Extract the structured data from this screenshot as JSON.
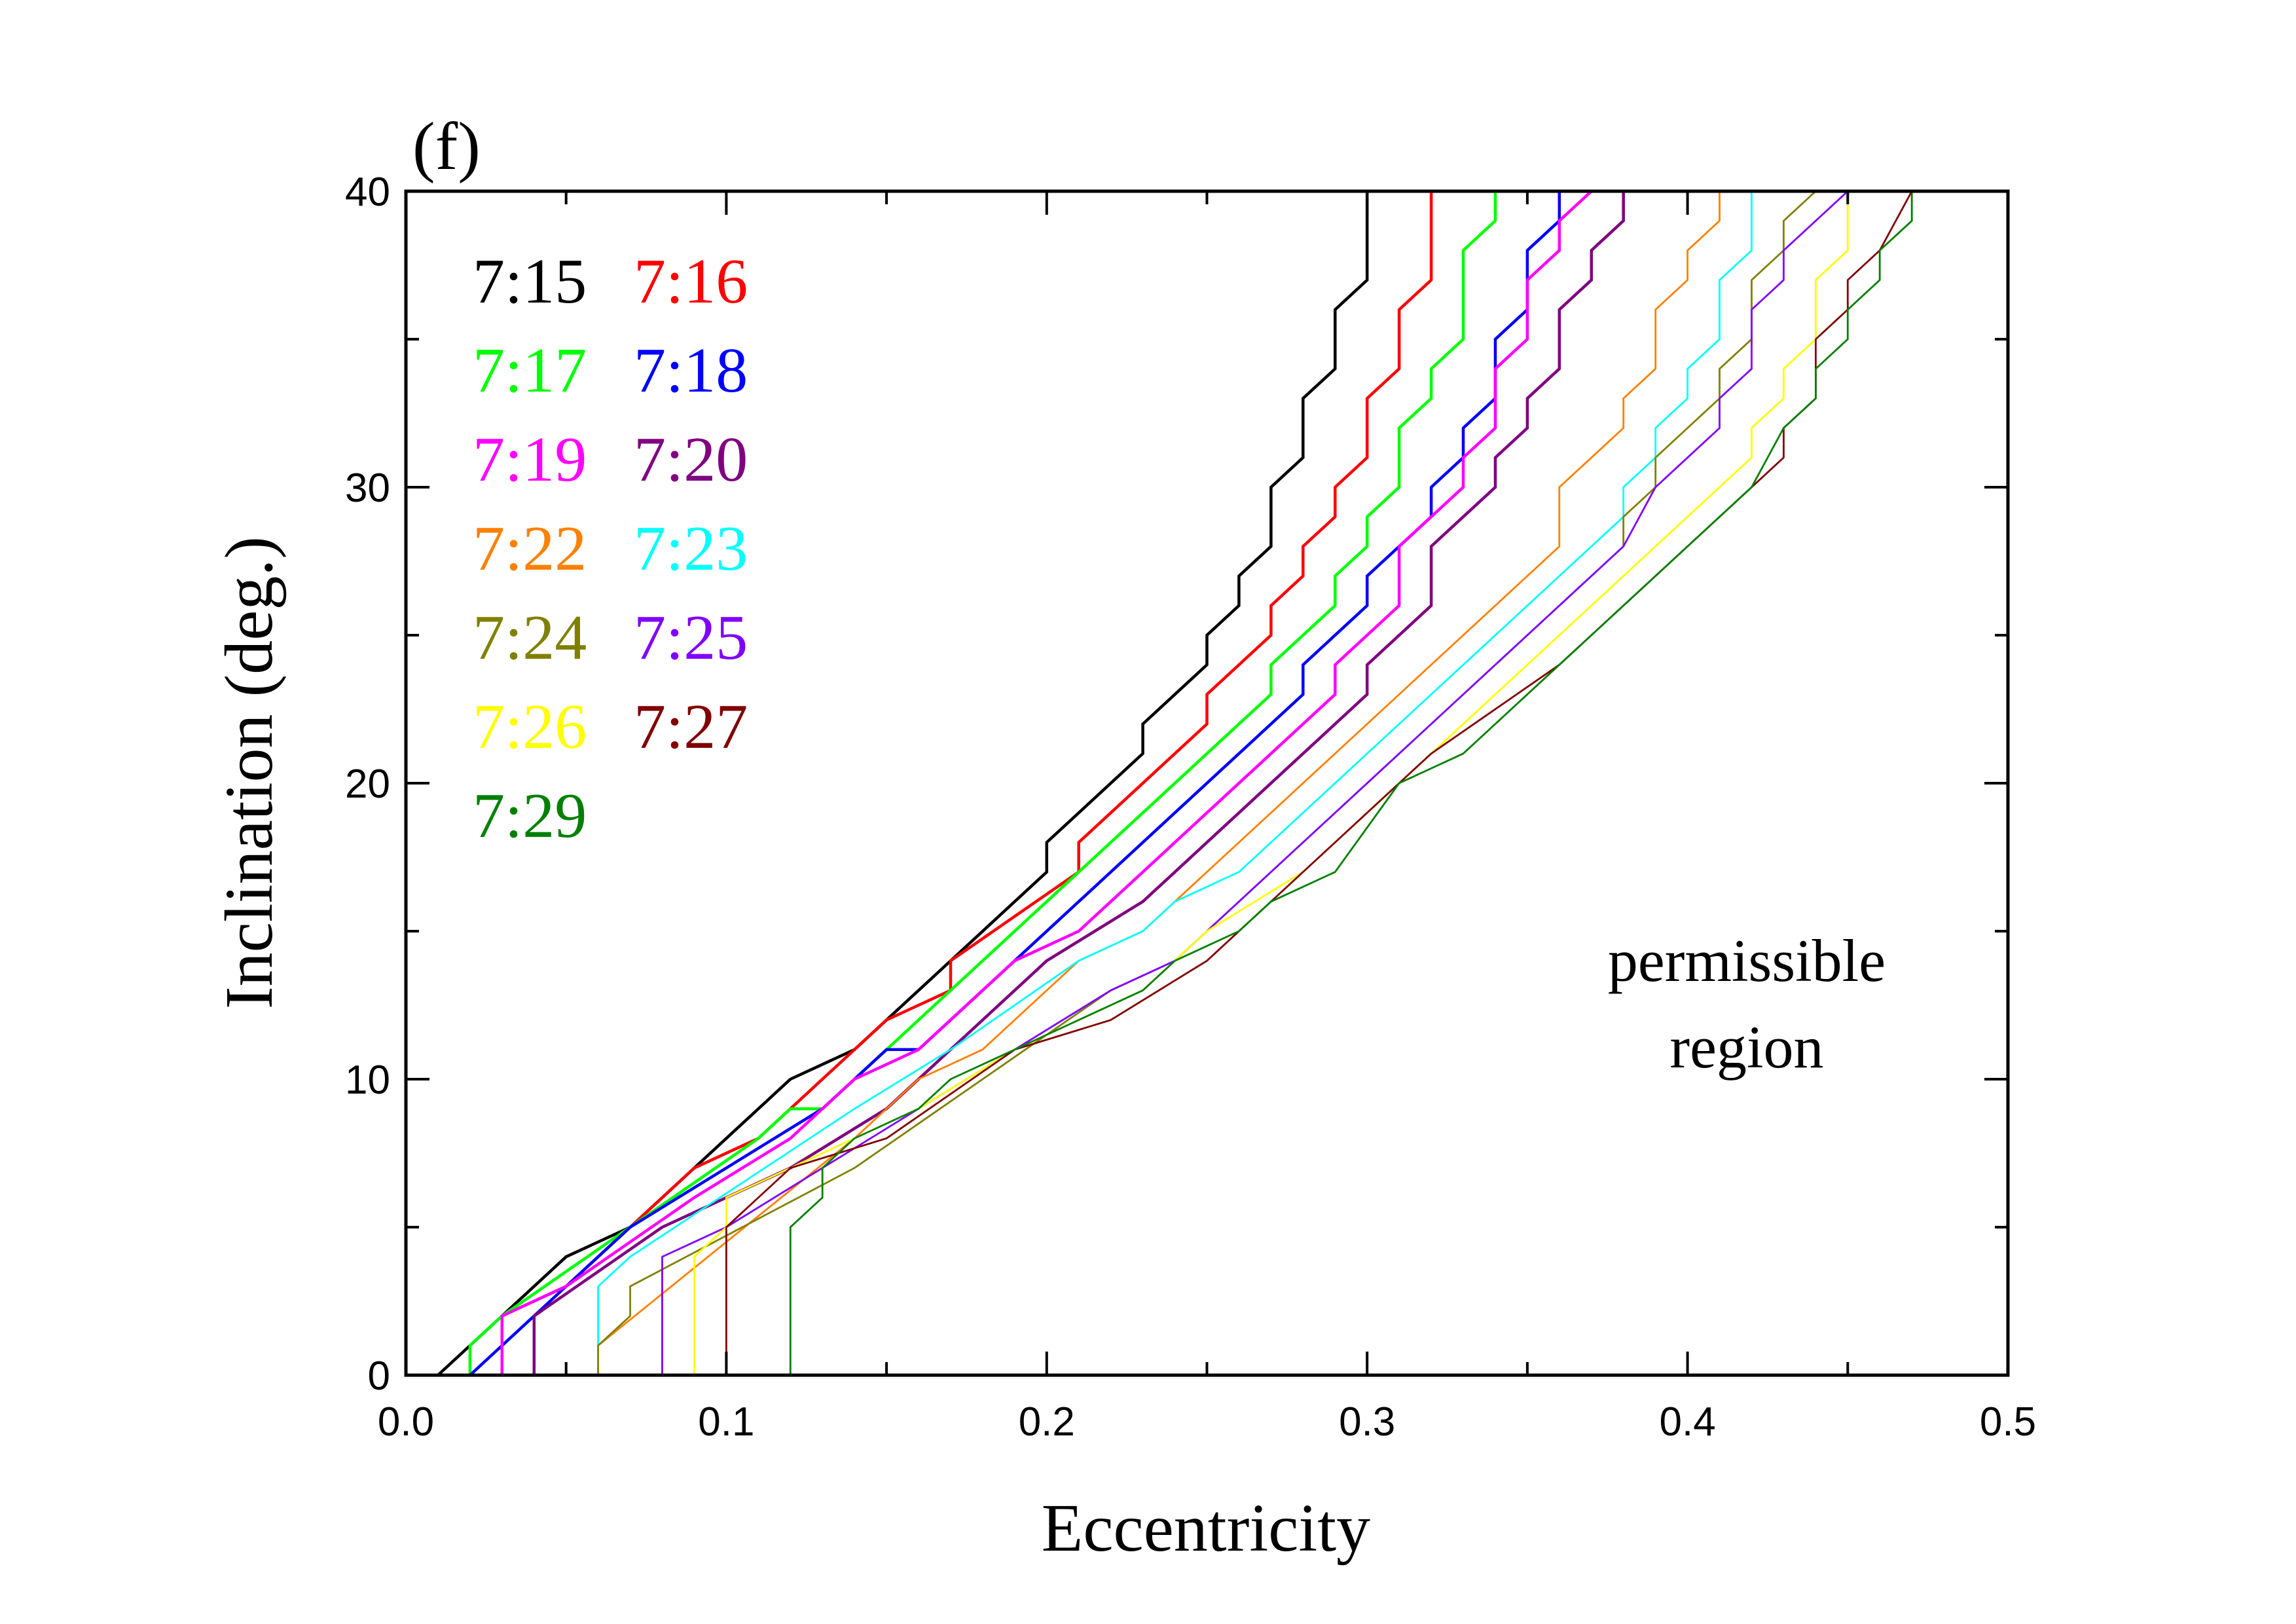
{
  "chart_data": {
    "type": "line",
    "panel_label": "(f)",
    "xlabel": "Eccentricity",
    "ylabel": "Inclination (deg.)",
    "xlim": [
      0.0,
      0.5
    ],
    "ylim": [
      0,
      40
    ],
    "xticks": [
      0.0,
      0.1,
      0.2,
      0.3,
      0.4,
      0.5
    ],
    "xtick_labels": [
      "0.0",
      "0.1",
      "0.2",
      "0.3",
      "0.4",
      "0.5"
    ],
    "yticks": [
      0,
      10,
      20,
      30,
      40
    ],
    "ytick_labels": [
      "0",
      "10",
      "20",
      "30",
      "40"
    ],
    "grid": false,
    "legend_position": "top-left",
    "annotation": [
      "permissible",
      "region"
    ],
    "series": [
      {
        "name": "7:15",
        "color": "#000000",
        "points": [
          [
            0.01,
            0
          ],
          [
            0.05,
            4
          ],
          [
            0.07,
            5
          ],
          [
            0.12,
            10
          ],
          [
            0.14,
            11
          ],
          [
            0.2,
            17
          ],
          [
            0.2,
            18
          ],
          [
            0.23,
            21
          ],
          [
            0.23,
            22
          ],
          [
            0.25,
            24
          ],
          [
            0.25,
            25
          ],
          [
            0.26,
            26
          ],
          [
            0.26,
            27
          ],
          [
            0.27,
            28
          ],
          [
            0.27,
            30
          ],
          [
            0.28,
            31
          ],
          [
            0.28,
            33
          ],
          [
            0.29,
            34
          ],
          [
            0.29,
            36
          ],
          [
            0.3,
            37
          ],
          [
            0.3,
            40
          ]
        ]
      },
      {
        "name": "7:16",
        "color": "#ff0000",
        "points": [
          [
            0.03,
            2
          ],
          [
            0.05,
            3
          ],
          [
            0.09,
            7
          ],
          [
            0.11,
            8
          ],
          [
            0.15,
            12
          ],
          [
            0.17,
            13
          ],
          [
            0.17,
            14
          ],
          [
            0.21,
            17
          ],
          [
            0.21,
            18
          ],
          [
            0.25,
            22
          ],
          [
            0.25,
            23
          ],
          [
            0.27,
            25
          ],
          [
            0.27,
            26
          ],
          [
            0.28,
            27
          ],
          [
            0.28,
            28
          ],
          [
            0.29,
            29
          ],
          [
            0.29,
            30
          ],
          [
            0.3,
            31
          ],
          [
            0.3,
            33
          ],
          [
            0.31,
            34
          ],
          [
            0.31,
            36
          ],
          [
            0.32,
            37
          ],
          [
            0.32,
            40
          ]
        ]
      },
      {
        "name": "7:17",
        "color": "#00ff00",
        "points": [
          [
            0.02,
            0
          ],
          [
            0.02,
            1
          ],
          [
            0.03,
            2
          ],
          [
            0.11,
            8
          ],
          [
            0.12,
            9
          ],
          [
            0.13,
            9
          ],
          [
            0.14,
            10
          ],
          [
            0.17,
            13
          ],
          [
            0.2,
            16
          ],
          [
            0.27,
            23
          ],
          [
            0.27,
            24
          ],
          [
            0.29,
            26
          ],
          [
            0.29,
            27
          ],
          [
            0.3,
            28
          ],
          [
            0.3,
            29
          ],
          [
            0.31,
            30
          ],
          [
            0.31,
            32
          ],
          [
            0.32,
            33
          ],
          [
            0.32,
            34
          ],
          [
            0.33,
            35
          ],
          [
            0.33,
            38
          ],
          [
            0.34,
            39
          ],
          [
            0.34,
            40
          ]
        ]
      },
      {
        "name": "7:18",
        "color": "#0000ff",
        "points": [
          [
            0.02,
            0
          ],
          [
            0.05,
            3
          ],
          [
            0.07,
            5
          ],
          [
            0.13,
            9
          ],
          [
            0.15,
            11
          ],
          [
            0.16,
            11
          ],
          [
            0.18,
            13
          ],
          [
            0.28,
            23
          ],
          [
            0.28,
            24
          ],
          [
            0.3,
            26
          ],
          [
            0.3,
            27
          ],
          [
            0.32,
            29
          ],
          [
            0.32,
            30
          ],
          [
            0.33,
            31
          ],
          [
            0.33,
            32
          ],
          [
            0.34,
            33
          ],
          [
            0.34,
            35
          ],
          [
            0.35,
            36
          ],
          [
            0.35,
            38
          ],
          [
            0.36,
            39
          ],
          [
            0.36,
            40
          ]
        ]
      },
      {
        "name": "7:19",
        "color": "#ff00ff",
        "points": [
          [
            0.03,
            0
          ],
          [
            0.03,
            2
          ],
          [
            0.05,
            3
          ],
          [
            0.09,
            6
          ],
          [
            0.12,
            8
          ],
          [
            0.13,
            9
          ],
          [
            0.14,
            10
          ],
          [
            0.16,
            11
          ],
          [
            0.17,
            12
          ],
          [
            0.19,
            14
          ],
          [
            0.21,
            15
          ],
          [
            0.29,
            23
          ],
          [
            0.29,
            24
          ],
          [
            0.31,
            26
          ],
          [
            0.31,
            28
          ],
          [
            0.33,
            30
          ],
          [
            0.33,
            31
          ],
          [
            0.34,
            32
          ],
          [
            0.34,
            34
          ],
          [
            0.35,
            35
          ],
          [
            0.35,
            37
          ],
          [
            0.36,
            38
          ],
          [
            0.36,
            39
          ],
          [
            0.37,
            40
          ]
        ]
      },
      {
        "name": "7:20",
        "color": "#800080",
        "points": [
          [
            0.04,
            0
          ],
          [
            0.04,
            2
          ],
          [
            0.08,
            5
          ],
          [
            0.12,
            7
          ],
          [
            0.15,
            9
          ],
          [
            0.18,
            12
          ],
          [
            0.2,
            14
          ],
          [
            0.23,
            16
          ],
          [
            0.3,
            23
          ],
          [
            0.3,
            24
          ],
          [
            0.32,
            26
          ],
          [
            0.32,
            28
          ],
          [
            0.34,
            30
          ],
          [
            0.34,
            31
          ],
          [
            0.35,
            32
          ],
          [
            0.35,
            33
          ],
          [
            0.36,
            34
          ],
          [
            0.36,
            36
          ],
          [
            0.37,
            37
          ],
          [
            0.37,
            38
          ],
          [
            0.38,
            39
          ],
          [
            0.38,
            40
          ]
        ]
      },
      {
        "name": "7:22",
        "color": "#ff8000",
        "points": [
          [
            0.06,
            1
          ],
          [
            0.14,
            8
          ],
          [
            0.16,
            10
          ],
          [
            0.18,
            11
          ],
          [
            0.2,
            13
          ],
          [
            0.21,
            14
          ],
          [
            0.23,
            15
          ],
          [
            0.35,
            27
          ],
          [
            0.36,
            28
          ],
          [
            0.36,
            30
          ],
          [
            0.37,
            31
          ],
          [
            0.38,
            32
          ],
          [
            0.38,
            33
          ],
          [
            0.39,
            34
          ],
          [
            0.39,
            36
          ],
          [
            0.4,
            37
          ],
          [
            0.4,
            38
          ],
          [
            0.41,
            39
          ],
          [
            0.41,
            40
          ]
        ]
      },
      {
        "name": "7:23",
        "color": "#00ffff",
        "points": [
          [
            0.06,
            0
          ],
          [
            0.06,
            3
          ],
          [
            0.07,
            4
          ],
          [
            0.14,
            9
          ],
          [
            0.17,
            11
          ],
          [
            0.21,
            14
          ],
          [
            0.23,
            15
          ],
          [
            0.24,
            16
          ],
          [
            0.26,
            17
          ],
          [
            0.35,
            26
          ],
          [
            0.37,
            28
          ],
          [
            0.38,
            29
          ],
          [
            0.38,
            30
          ],
          [
            0.39,
            31
          ],
          [
            0.39,
            32
          ],
          [
            0.4,
            33
          ],
          [
            0.4,
            34
          ],
          [
            0.41,
            35
          ],
          [
            0.41,
            37
          ],
          [
            0.42,
            38
          ],
          [
            0.42,
            40
          ]
        ]
      },
      {
        "name": "7:24",
        "color": "#808000",
        "points": [
          [
            0.06,
            0
          ],
          [
            0.06,
            1
          ],
          [
            0.07,
            2
          ],
          [
            0.07,
            3
          ],
          [
            0.14,
            7
          ],
          [
            0.18,
            10
          ],
          [
            0.22,
            13
          ],
          [
            0.24,
            14
          ],
          [
            0.27,
            17
          ],
          [
            0.29,
            19
          ],
          [
            0.35,
            25
          ],
          [
            0.38,
            28
          ],
          [
            0.38,
            29
          ],
          [
            0.39,
            30
          ],
          [
            0.39,
            31
          ],
          [
            0.4,
            32
          ],
          [
            0.41,
            33
          ],
          [
            0.41,
            34
          ],
          [
            0.42,
            35
          ],
          [
            0.42,
            37
          ],
          [
            0.43,
            38
          ],
          [
            0.43,
            39
          ],
          [
            0.44,
            40
          ]
        ]
      },
      {
        "name": "7:25",
        "color": "#8000ff",
        "points": [
          [
            0.08,
            0
          ],
          [
            0.08,
            4
          ],
          [
            0.1,
            5
          ],
          [
            0.13,
            7
          ],
          [
            0.16,
            9
          ],
          [
            0.19,
            11
          ],
          [
            0.22,
            13
          ],
          [
            0.24,
            14
          ],
          [
            0.28,
            18
          ],
          [
            0.29,
            19
          ],
          [
            0.36,
            26
          ],
          [
            0.38,
            28
          ],
          [
            0.39,
            30
          ],
          [
            0.4,
            31
          ],
          [
            0.41,
            32
          ],
          [
            0.41,
            33
          ],
          [
            0.42,
            34
          ],
          [
            0.42,
            36
          ],
          [
            0.43,
            37
          ],
          [
            0.43,
            38
          ],
          [
            0.44,
            39
          ],
          [
            0.45,
            40
          ]
        ]
      },
      {
        "name": "7:26",
        "color": "#ffff00",
        "points": [
          [
            0.09,
            0
          ],
          [
            0.09,
            4
          ],
          [
            0.1,
            5
          ],
          [
            0.1,
            6
          ],
          [
            0.12,
            7
          ],
          [
            0.16,
            9
          ],
          [
            0.19,
            11
          ],
          [
            0.23,
            13
          ],
          [
            0.25,
            15
          ],
          [
            0.28,
            17
          ],
          [
            0.29,
            18
          ],
          [
            0.3,
            19
          ],
          [
            0.37,
            26
          ],
          [
            0.39,
            28
          ],
          [
            0.41,
            30
          ],
          [
            0.42,
            31
          ],
          [
            0.42,
            32
          ],
          [
            0.43,
            33
          ],
          [
            0.43,
            34
          ],
          [
            0.44,
            35
          ],
          [
            0.44,
            37
          ],
          [
            0.45,
            38
          ],
          [
            0.45,
            40
          ]
        ]
      },
      {
        "name": "7:27",
        "color": "#800000",
        "points": [
          [
            0.1,
            0
          ],
          [
            0.1,
            5
          ],
          [
            0.12,
            7
          ],
          [
            0.15,
            8
          ],
          [
            0.19,
            11
          ],
          [
            0.22,
            12
          ],
          [
            0.25,
            14
          ],
          [
            0.28,
            17
          ],
          [
            0.3,
            19
          ],
          [
            0.31,
            20
          ],
          [
            0.32,
            21
          ],
          [
            0.36,
            24
          ],
          [
            0.4,
            28
          ],
          [
            0.42,
            30
          ],
          [
            0.43,
            31
          ],
          [
            0.43,
            32
          ],
          [
            0.44,
            33
          ],
          [
            0.44,
            35
          ],
          [
            0.45,
            36
          ],
          [
            0.45,
            37
          ],
          [
            0.46,
            38
          ],
          [
            0.47,
            40
          ]
        ]
      },
      {
        "name": "7:29",
        "color": "#008000",
        "points": [
          [
            0.12,
            0
          ],
          [
            0.12,
            5
          ],
          [
            0.13,
            6
          ],
          [
            0.13,
            7
          ],
          [
            0.14,
            8
          ],
          [
            0.16,
            9
          ],
          [
            0.17,
            10
          ],
          [
            0.23,
            13
          ],
          [
            0.24,
            14
          ],
          [
            0.26,
            15
          ],
          [
            0.27,
            16
          ],
          [
            0.29,
            17
          ],
          [
            0.31,
            20
          ],
          [
            0.33,
            21
          ],
          [
            0.36,
            24
          ],
          [
            0.39,
            27
          ],
          [
            0.4,
            28
          ],
          [
            0.42,
            30
          ],
          [
            0.43,
            32
          ],
          [
            0.44,
            33
          ],
          [
            0.44,
            34
          ],
          [
            0.45,
            35
          ],
          [
            0.45,
            36
          ],
          [
            0.46,
            37
          ],
          [
            0.46,
            38
          ],
          [
            0.47,
            39
          ],
          [
            0.47,
            40
          ]
        ]
      }
    ]
  }
}
